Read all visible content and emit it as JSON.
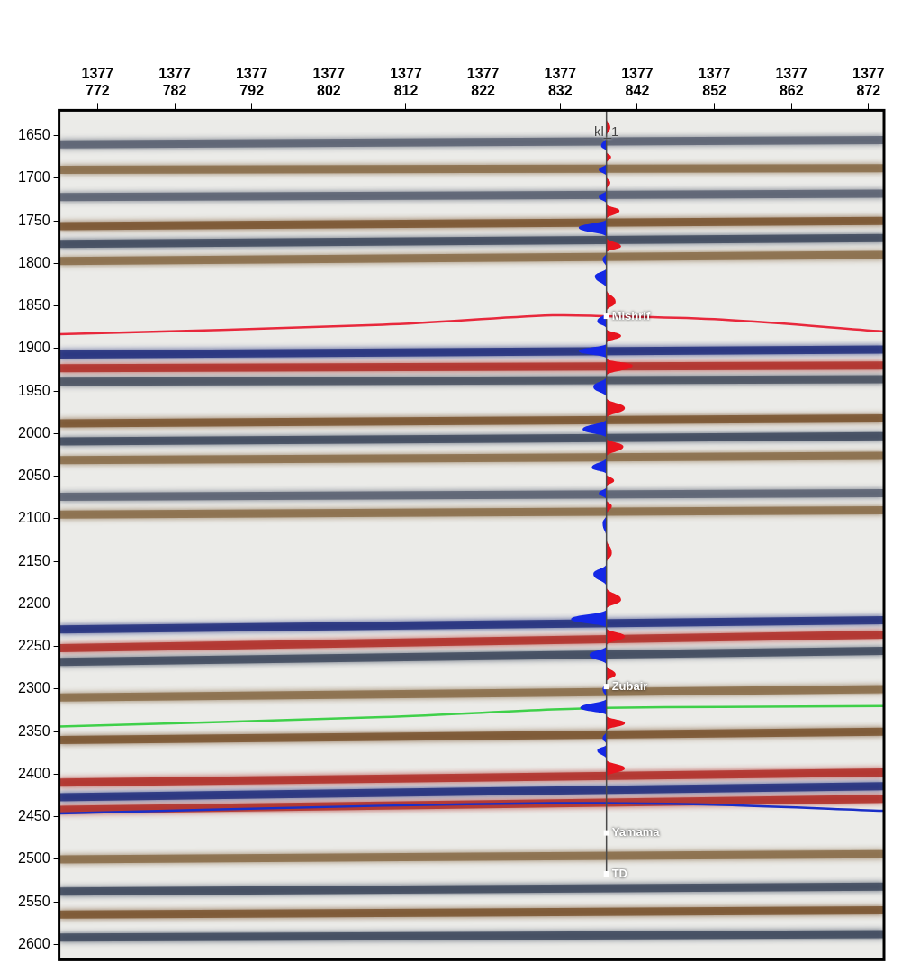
{
  "chart_data": {
    "type": "seismic",
    "xlim": [
      1377767,
      1377874
    ],
    "xticks": [
      {
        "value": 1377772,
        "label": "1377 772"
      },
      {
        "value": 1377782,
        "label": "1377 782"
      },
      {
        "value": 1377792,
        "label": "1377 792"
      },
      {
        "value": 1377802,
        "label": "1377 802"
      },
      {
        "value": 1377812,
        "label": "1377 812"
      },
      {
        "value": 1377822,
        "label": "1377 822"
      },
      {
        "value": 1377832,
        "label": "1377 832"
      },
      {
        "value": 1377842,
        "label": "1377 842"
      },
      {
        "value": 1377852,
        "label": "1377 852"
      },
      {
        "value": 1377862,
        "label": "1377 862"
      },
      {
        "value": 1377872,
        "label": "1377 872"
      }
    ],
    "ylim": [
      1620,
      2618
    ],
    "yticks": [
      1650,
      1700,
      1750,
      1800,
      1850,
      1900,
      1950,
      2000,
      2050,
      2100,
      2150,
      2200,
      2250,
      2300,
      2350,
      2400,
      2450,
      2500,
      2550,
      2600
    ],
    "grid": false,
    "series": [
      {
        "color": "#e8283c",
        "x": [
          1377767,
          1377809,
          1377831,
          1377838,
          1377853,
          1377874
        ],
        "values": [
          1883,
          1872,
          1861,
          1862,
          1866,
          1880
        ]
      },
      {
        "color": "#3fd04a",
        "x": [
          1377767,
          1377809,
          1377831,
          1377838,
          1377853,
          1377874
        ],
        "values": [
          2344,
          2333,
          2324,
          2322,
          2321,
          2320
        ]
      },
      {
        "color": "#1a2fc8",
        "x": [
          1377767,
          1377809,
          1377831,
          1377838,
          1377853,
          1377874
        ],
        "values": [
          2446,
          2437,
          2434,
          2434,
          2436,
          2443
        ]
      }
    ],
    "reflectors": [
      {
        "time_left": 1660,
        "time_right": 1655,
        "color": "#5a6272"
      },
      {
        "time_left": 1690,
        "time_right": 1688,
        "color": "#8a6d4a"
      },
      {
        "time_left": 1722,
        "time_right": 1718,
        "color": "#5a6272"
      },
      {
        "time_left": 1756,
        "time_right": 1750,
        "color": "#7a5530"
      },
      {
        "time_left": 1777,
        "time_right": 1770,
        "color": "#3f4a5e"
      },
      {
        "time_left": 1797,
        "time_right": 1790,
        "color": "#8a6d4a"
      },
      {
        "time_left": 1907,
        "time_right": 1901,
        "color": "#23307e"
      },
      {
        "time_left": 1923,
        "time_right": 1920,
        "color": "#b0302a"
      },
      {
        "time_left": 1939,
        "time_right": 1936,
        "color": "#4a5262"
      },
      {
        "time_left": 1988,
        "time_right": 1982,
        "color": "#7a5530"
      },
      {
        "time_left": 2009,
        "time_right": 2003,
        "color": "#3f4a5e"
      },
      {
        "time_left": 2031,
        "time_right": 2026,
        "color": "#8a6d4a"
      },
      {
        "time_left": 2074,
        "time_right": 2070,
        "color": "#5a6272"
      },
      {
        "time_left": 2095,
        "time_right": 2090,
        "color": "#8a6d4a"
      },
      {
        "time_left": 2230,
        "time_right": 2219,
        "color": "#23307e"
      },
      {
        "time_left": 2252,
        "time_right": 2236,
        "color": "#b0302a"
      },
      {
        "time_left": 2268,
        "time_right": 2255,
        "color": "#3f4a5e"
      },
      {
        "time_left": 2310,
        "time_right": 2300,
        "color": "#8a6d4a"
      },
      {
        "time_left": 2360,
        "time_right": 2350,
        "color": "#7a5530"
      },
      {
        "time_left": 2410,
        "time_right": 2398,
        "color": "#b0302a"
      },
      {
        "time_left": 2427,
        "time_right": 2414,
        "color": "#23307e"
      },
      {
        "time_left": 2442,
        "time_right": 2429,
        "color": "#b0302a"
      },
      {
        "time_left": 2500,
        "time_right": 2494,
        "color": "#8a6d4a"
      },
      {
        "time_left": 2538,
        "time_right": 2532,
        "color": "#3f4a5e"
      },
      {
        "time_left": 2565,
        "time_right": 2560,
        "color": "#7a5530"
      },
      {
        "time_left": 2592,
        "time_right": 2588,
        "color": "#3f4a5e"
      }
    ],
    "well": {
      "name": "kl_1",
      "x": 1377838,
      "tops": [
        {
          "name": "Mishrif",
          "time": 1862
        },
        {
          "name": "Zubair",
          "time": 2297
        },
        {
          "name": "Yamama",
          "time": 2469
        },
        {
          "name": "TD",
          "time": 2517
        }
      ],
      "trace": {
        "time": [
          1640,
          1662,
          1675,
          1690,
          1705,
          1722,
          1738,
          1758,
          1780,
          1795,
          1815,
          1845,
          1868,
          1885,
          1903,
          1920,
          1945,
          1970,
          1995,
          2015,
          2040,
          2055,
          2070,
          2085,
          2105,
          2140,
          2165,
          2195,
          2218,
          2238,
          2260,
          2283,
          2300,
          2322,
          2340,
          2358,
          2372,
          2393
        ],
        "amplitude": [
          0.5,
          -0.7,
          0.6,
          -1.0,
          0.5,
          -1.0,
          1.7,
          -3.6,
          1.9,
          -0.5,
          -1.5,
          1.2,
          -1.2,
          1.9,
          -3.6,
          3.4,
          -1.7,
          2.4,
          -3.1,
          2.2,
          -1.9,
          1.0,
          -1.0,
          0.7,
          -0.5,
          0.7,
          -1.7,
          1.9,
          -4.6,
          2.4,
          -2.2,
          1.2,
          -0.5,
          -3.4,
          2.4,
          -0.5,
          -1.2,
          2.4
        ]
      }
    }
  }
}
